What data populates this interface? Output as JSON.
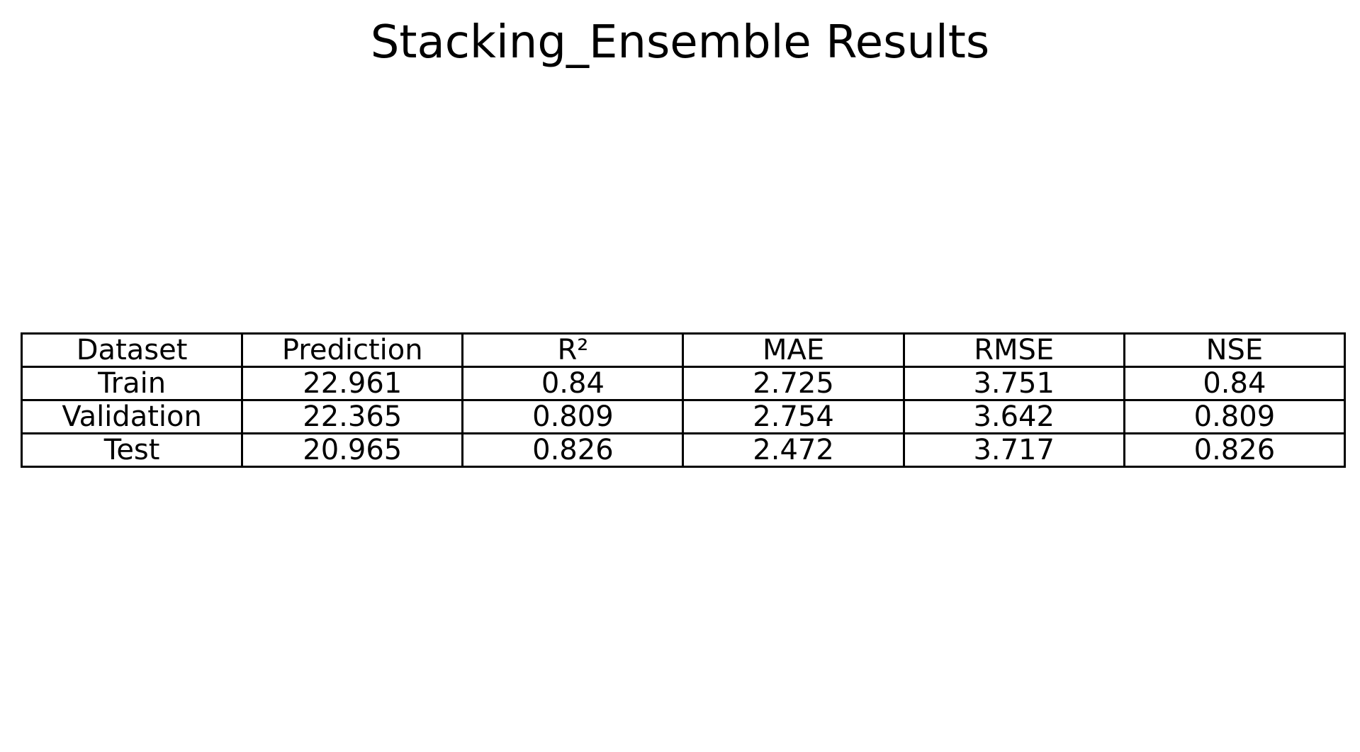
{
  "chart_data": {
    "type": "table",
    "title": "Stacking_Ensemble Results",
    "columns": [
      "Dataset",
      "Prediction",
      "R²",
      "MAE",
      "RMSE",
      "NSE"
    ],
    "rows": [
      [
        "Train",
        "22.961",
        "0.84",
        "2.725",
        "3.751",
        "0.84"
      ],
      [
        "Validation",
        "22.365",
        "0.809",
        "2.754",
        "3.642",
        "0.809"
      ],
      [
        "Test",
        "20.965",
        "0.826",
        "2.472",
        "3.717",
        "0.826"
      ]
    ]
  }
}
